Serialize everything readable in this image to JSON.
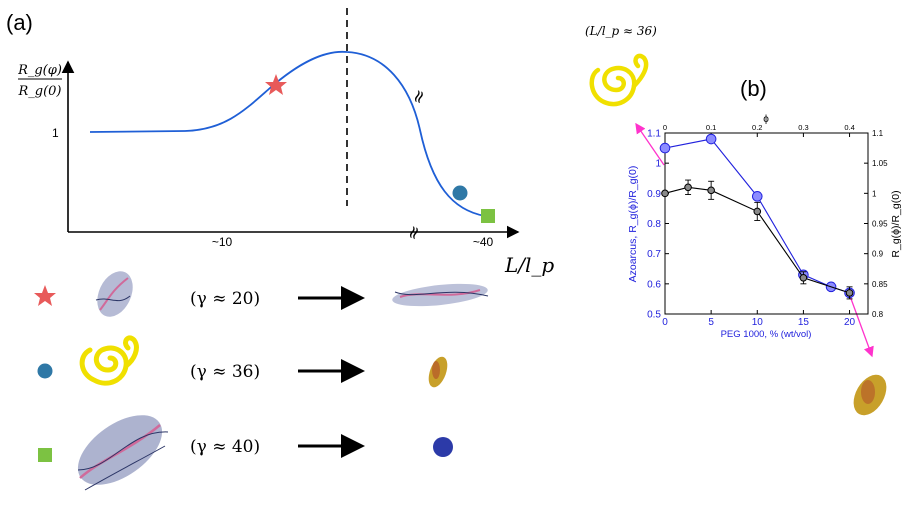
{
  "panel_a": {
    "label": "(a)",
    "ylabel_num": "R_g(φ)",
    "ylabel_den": "R_g(0)",
    "xlabel": "L/l_p",
    "ytick": "1",
    "xticks": [
      "~10",
      "~40"
    ],
    "break_mark": "≈",
    "rows": [
      {
        "symbol": "star",
        "color": "#e85a5a",
        "text": "(γ ≈ 20)"
      },
      {
        "symbol": "circle",
        "color": "#2f78a6",
        "text": "(γ ≈ 36)"
      },
      {
        "symbol": "square",
        "color": "#7cc242",
        "text": "(γ ≈ 40)"
      }
    ],
    "colors": {
      "curve": "#1f5fd6",
      "arrow": "#000000"
    }
  },
  "panel_b": {
    "label": "(b)",
    "inset_label": "(L/l_p ≈ 36)",
    "colors": {
      "blue_series": "#2222dd",
      "black_series": "#000000",
      "blue_fill": "#8c8cff",
      "gray_fill": "#8a8a8a",
      "magenta_arrow": "#ff33cc"
    }
  },
  "chart_data": {
    "type": "line",
    "xlabel": "PEG 1000, % (wt/vol)",
    "xlabel_top": "ϕ",
    "ylabel_left": "Azoarcus, R_g(ϕ)/R_g(0)",
    "ylabel_right": "R_g(ϕ)/R_g(0)",
    "xlim": [
      0,
      22
    ],
    "xticks": [
      0,
      5,
      10,
      15,
      20
    ],
    "xlim_top": [
      0,
      0.44
    ],
    "xticks_top": [
      0,
      0.1,
      0.2,
      0.3,
      0.4
    ],
    "ylim_left": [
      0.5,
      1.1
    ],
    "yticks_left": [
      0.5,
      0.6,
      0.7,
      0.8,
      0.9,
      1,
      1.1
    ],
    "ylim_right": [
      0.8,
      1.1
    ],
    "yticks_right": [
      0.8,
      0.85,
      0.9,
      0.95,
      1,
      1.05,
      1.1
    ],
    "series": [
      {
        "axis": "left",
        "color": "#2222dd",
        "x": [
          0,
          5,
          10,
          15,
          18,
          20
        ],
        "y": [
          1.05,
          1.08,
          0.89,
          0.63,
          0.59,
          0.57
        ]
      },
      {
        "axis": "right",
        "color": "#000000",
        "x": [
          0,
          2.5,
          5,
          10,
          15,
          20
        ],
        "y": [
          1.0,
          1.01,
          1.005,
          0.97,
          0.86,
          0.835
        ],
        "err": [
          0,
          0.012,
          0.015,
          0.015,
          0.01,
          0.01
        ]
      }
    ],
    "grid": false
  }
}
